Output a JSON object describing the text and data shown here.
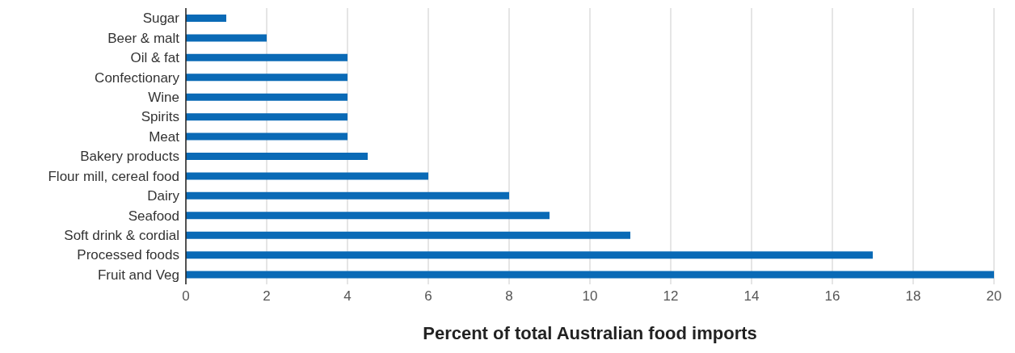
{
  "chart_data": {
    "type": "bar",
    "orientation": "horizontal",
    "categories": [
      "Sugar",
      "Beer & malt",
      "Oil & fat",
      "Confectionary",
      "Wine",
      "Spirits",
      "Meat",
      "Bakery products",
      "Flour mill, cereal food",
      "Dairy",
      "Seafood",
      "Soft drink & cordial",
      "Processed foods",
      "Fruit and Veg"
    ],
    "values": [
      1,
      2,
      4,
      4,
      4,
      4,
      4,
      4.5,
      6,
      8,
      9,
      11,
      17,
      20
    ],
    "color": "#0a6ab6",
    "xlabel": "Percent of total Australian food imports",
    "xlim": [
      0,
      20
    ],
    "xticks": [
      0,
      2,
      4,
      6,
      8,
      10,
      12,
      14,
      16,
      18,
      20
    ],
    "grid": "x"
  }
}
